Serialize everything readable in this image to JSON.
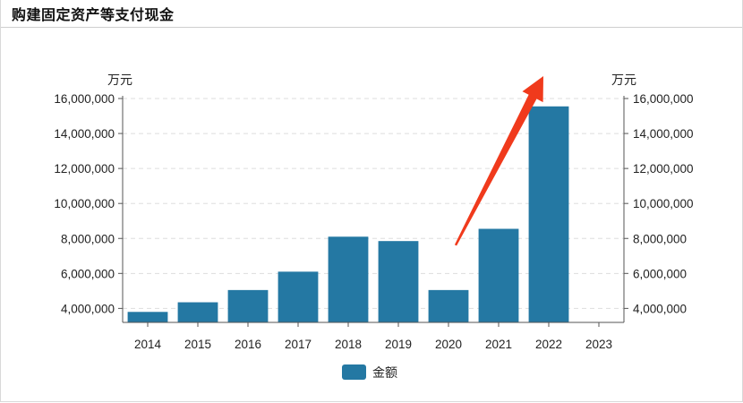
{
  "header": {
    "title": "购建固定资产等支付现金"
  },
  "colors": {
    "bar": "#2478a3",
    "arrow": "#f03a1c",
    "axis": "#555555",
    "grid": "#dddddd"
  },
  "chart_data": {
    "type": "bar",
    "categories": [
      "2014",
      "2015",
      "2016",
      "2017",
      "2018",
      "2019",
      "2020",
      "2021",
      "2022",
      "2023"
    ],
    "series": [
      {
        "name": "金额",
        "values": [
          3800000,
          4350000,
          5050000,
          6100000,
          8100000,
          7850000,
          5050000,
          8550000,
          15550000,
          null
        ]
      }
    ],
    "y_unit_left": "万元",
    "y_unit_right": "万元",
    "ylim": [
      3200000,
      16000000
    ],
    "y_ticks": [
      4000000,
      6000000,
      8000000,
      10000000,
      12000000,
      14000000,
      16000000
    ],
    "y_tick_labels": [
      "4,000,000",
      "6,000,000",
      "8,000,000",
      "10,000,000",
      "12,000,000",
      "14,000,000",
      "16,000,000"
    ],
    "grid": true,
    "legend_position": "bottom-center",
    "annotation": {
      "type": "arrow",
      "color": "#f03a1c",
      "from_category": "2020",
      "to_category": "2022"
    }
  }
}
